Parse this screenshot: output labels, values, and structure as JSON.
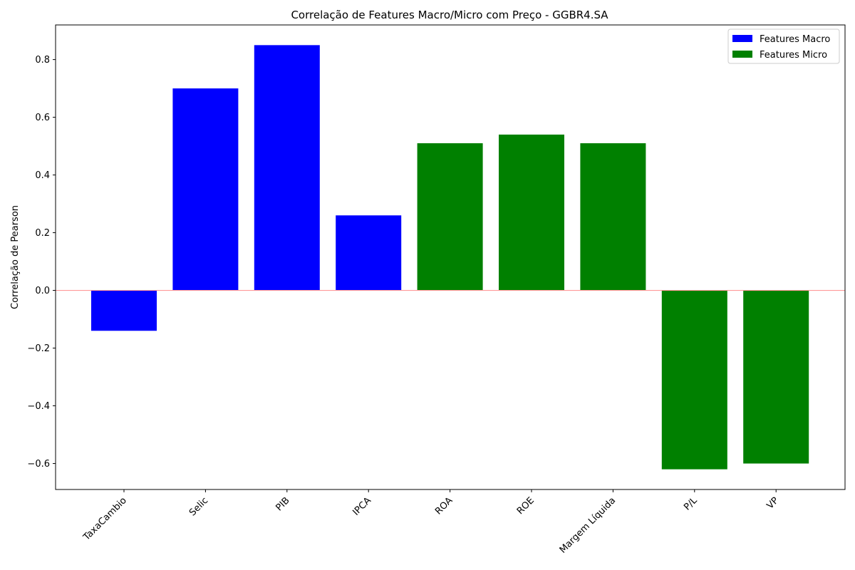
{
  "chart_data": {
    "type": "bar",
    "title": "Correlação de Features Macro/Micro com Preço - GGBR4.SA",
    "xlabel": "",
    "ylabel": "Correlação de Pearson",
    "ylim": [
      -0.69,
      0.92
    ],
    "yticks": [
      0.8,
      0.6,
      0.4,
      0.2,
      0.0,
      -0.2,
      -0.4,
      -0.6
    ],
    "ytick_labels": [
      "0.8",
      "0.6",
      "0.4",
      "0.2",
      "0.0",
      "−0.2",
      "−0.4",
      "−0.6"
    ],
    "categories": [
      "TaxaCambio",
      "Selic",
      "PIB",
      "IPCA",
      "ROA",
      "ROE",
      "Margem Líquida",
      "P/L",
      "VP"
    ],
    "values": [
      -0.14,
      0.7,
      0.85,
      0.26,
      0.51,
      0.54,
      0.51,
      -0.62,
      -0.6
    ],
    "groups": [
      "macro",
      "macro",
      "macro",
      "macro",
      "micro",
      "micro",
      "micro",
      "micro",
      "micro"
    ],
    "series": [
      {
        "key": "macro",
        "name": "Features Macro",
        "color": "#0000ff"
      },
      {
        "key": "micro",
        "name": "Features Micro",
        "color": "#008000"
      }
    ],
    "zero_line_color": "#ff9999",
    "legend_position": "top-right",
    "grid": false
  }
}
